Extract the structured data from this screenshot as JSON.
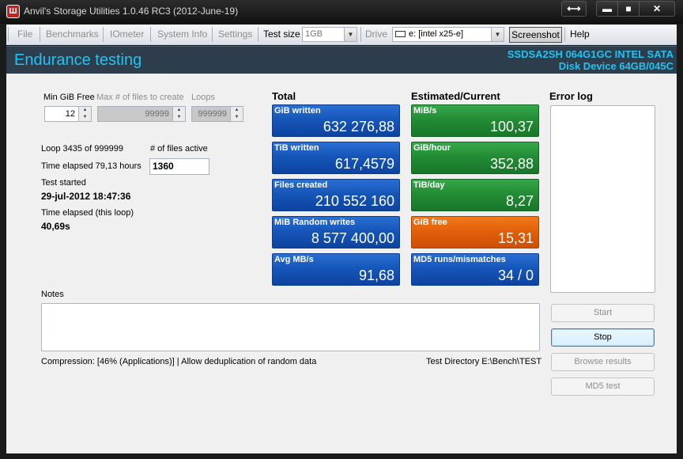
{
  "window": {
    "title": "Anvil's Storage Utilities 1.0.46 RC3 (2012-June-19)",
    "icon": "app-anvil-icon",
    "buttons": {
      "resize": "⟷",
      "minimize": "▬",
      "maximize": "■",
      "close": "✕"
    }
  },
  "menu": {
    "file": "File",
    "benchmarks": "Benchmarks",
    "iometer": "IOmeter",
    "system_info": "System Info",
    "settings": "Settings",
    "test_size_label": "Test size",
    "test_size_value": "1GB",
    "drive_label": "Drive",
    "drive_value": "e: [intel x25-e]",
    "screenshot": "Screenshot",
    "help": "Help"
  },
  "header": {
    "title": "Endurance testing",
    "device_line1": "SSDSA2SH 064G1GC INTEL SATA",
    "device_line2": "Disk Device 64GB/045C"
  },
  "settings": {
    "min_gib_free_label": "Min GiB Free",
    "min_gib_free_value": "12",
    "max_files_label": "Max # of files to create",
    "max_files_value": "99999",
    "loops_label": "Loops",
    "loops_value": "999999"
  },
  "status": {
    "loop": "Loop 3435 of 999999",
    "files_active_label": "# of files active",
    "files_active_value": "1360",
    "time_elapsed": "Time elapsed 79,13 hours",
    "test_started_label": "Test started",
    "test_started_value": "29-jul-2012 18:47:36",
    "time_elapsed_loop_label": "Time elapsed (this loop)",
    "time_elapsed_loop_value": "40,69s"
  },
  "total": {
    "heading": "Total",
    "tiles": [
      {
        "label": "GiB written",
        "value": "632 276,88"
      },
      {
        "label": "TiB written",
        "value": "617,4579"
      },
      {
        "label": "Files created",
        "value": "210 552 160"
      },
      {
        "label": "MiB Random writes",
        "value": "8 577 400,00"
      },
      {
        "label": "Avg MB/s",
        "value": "91,68"
      }
    ]
  },
  "estimated": {
    "heading": "Estimated/Current",
    "tiles": [
      {
        "label": "MiB/s",
        "value": "100,37",
        "color": "green"
      },
      {
        "label": "GiB/hour",
        "value": "352,88",
        "color": "green"
      },
      {
        "label": "TiB/day",
        "value": "8,27",
        "color": "green"
      },
      {
        "label": "GiB free",
        "value": "15,31",
        "color": "orange"
      },
      {
        "label": "MD5 runs/mismatches",
        "value": "34 / 0",
        "color": "blue"
      }
    ]
  },
  "error_log": {
    "heading": "Error log"
  },
  "notes": {
    "label": "Notes"
  },
  "footer": {
    "compression": "Compression: [46% (Applications)] | Allow deduplication of random data",
    "test_directory": "Test Directory E:\\Bench\\TEST"
  },
  "actions": {
    "start": "Start",
    "stop": "Stop",
    "browse": "Browse results",
    "md5": "MD5 test"
  },
  "colors": {
    "header_bg": "#2e3d4c",
    "header_text": "#22c2f2",
    "tile_blue": "#1656b9",
    "tile_green": "#238c35",
    "tile_orange": "#e2600a"
  }
}
